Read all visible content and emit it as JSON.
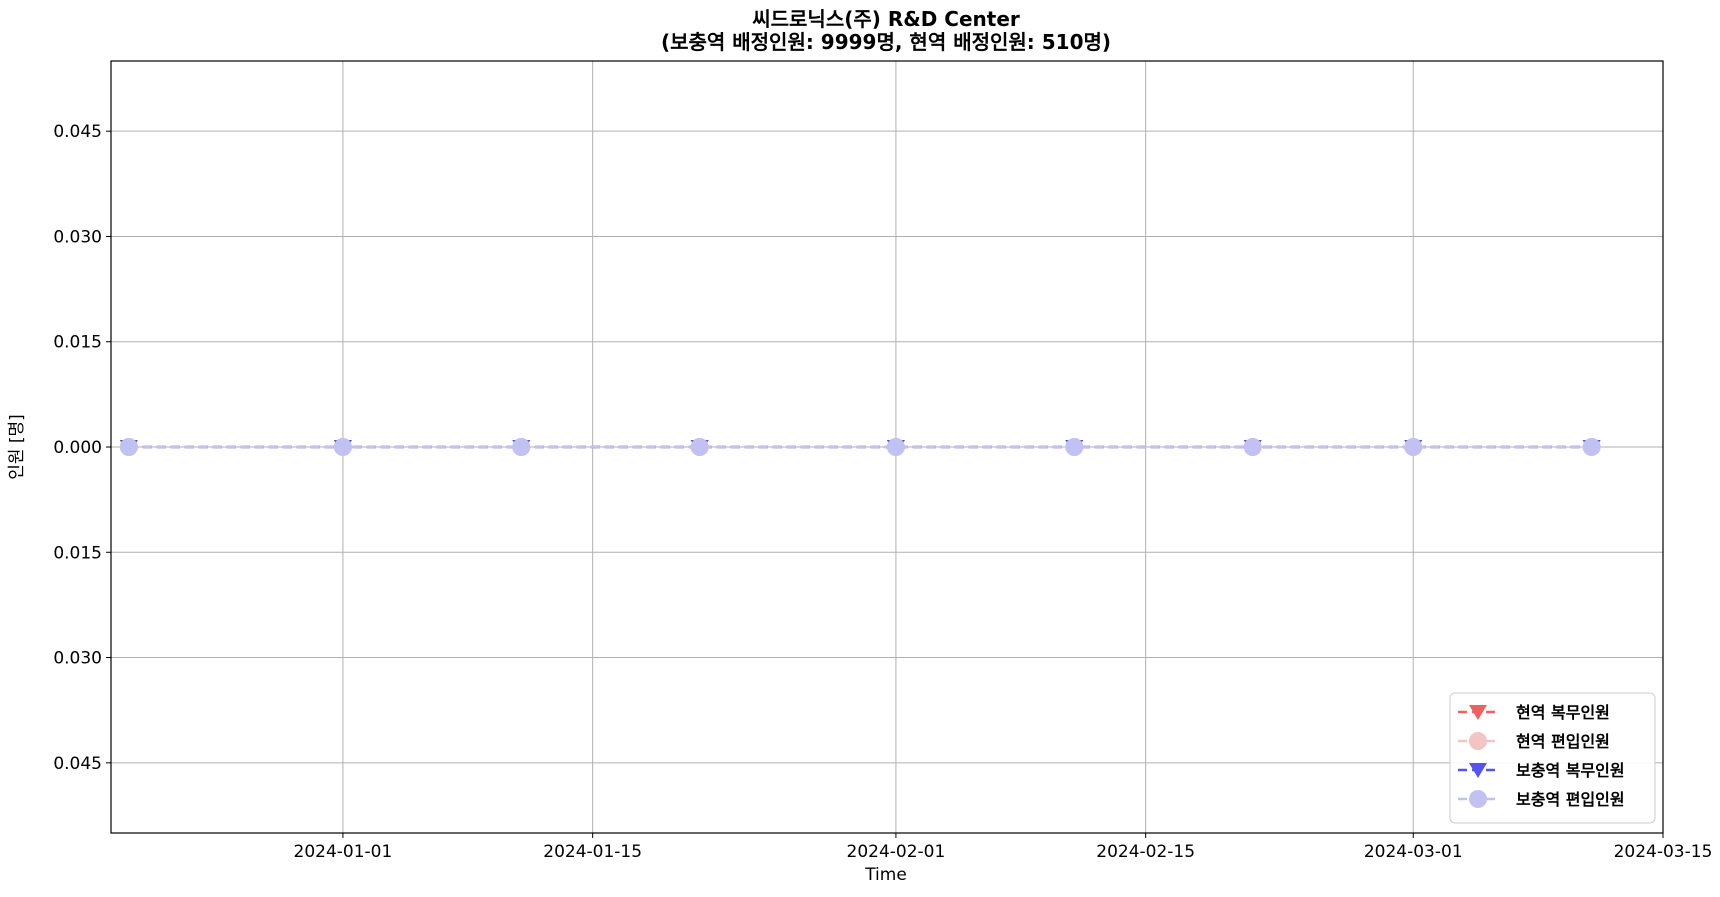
{
  "chart_data": {
    "type": "line",
    "title": "씨드로닉스(주)  R&D  Center",
    "subtitle": "(보충역  배정인원:  9999명,  현역  배정인원:  510명)",
    "xlabel": "Time",
    "ylabel": "인원  [명]",
    "xlim": [
      "2023-12-19",
      "2024-03-15"
    ],
    "ylim": [
      -0.055,
      0.055
    ],
    "x_ticks": [
      "2024-01-01",
      "2024-01-15",
      "2024-02-01",
      "2024-02-15",
      "2024-03-01",
      "2024-03-15"
    ],
    "y_ticks": [
      {
        "value": 0.045,
        "label": "0.045"
      },
      {
        "value": 0.03,
        "label": "0.030"
      },
      {
        "value": 0.015,
        "label": "0.015"
      },
      {
        "value": 0.0,
        "label": "0.000"
      },
      {
        "value": -0.015,
        "label": "0.015"
      },
      {
        "value": -0.03,
        "label": "0.030"
      },
      {
        "value": -0.045,
        "label": "0.045"
      }
    ],
    "grid": true,
    "legend_position": "bottom-right",
    "x": [
      "2023-12-20",
      "2024-01-01",
      "2024-01-11",
      "2024-01-21",
      "2024-02-01",
      "2024-02-11",
      "2024-02-21",
      "2024-03-01",
      "2024-03-11"
    ],
    "series": [
      {
        "name": "현역  복무인원",
        "color": "#f06060",
        "marker": "triangle-down",
        "line": "dashed",
        "values": [
          0,
          0,
          0,
          0,
          0,
          0,
          0,
          0,
          0
        ]
      },
      {
        "name": "현역  편입인원",
        "color": "#f2c4c4",
        "marker": "circle",
        "line": "dashed",
        "values": [
          0,
          0,
          0,
          0,
          0,
          0,
          0,
          0,
          0
        ]
      },
      {
        "name": "보충역  복무인원",
        "color": "#5555ee",
        "marker": "triangle-down",
        "line": "dashed",
        "values": [
          0,
          0,
          0,
          0,
          0,
          0,
          0,
          0,
          0
        ]
      },
      {
        "name": "보충역  편입인원",
        "color": "#c2c2f2",
        "marker": "circle",
        "line": "dashed",
        "values": [
          0,
          0,
          0,
          0,
          0,
          0,
          0,
          0,
          0
        ]
      }
    ]
  }
}
